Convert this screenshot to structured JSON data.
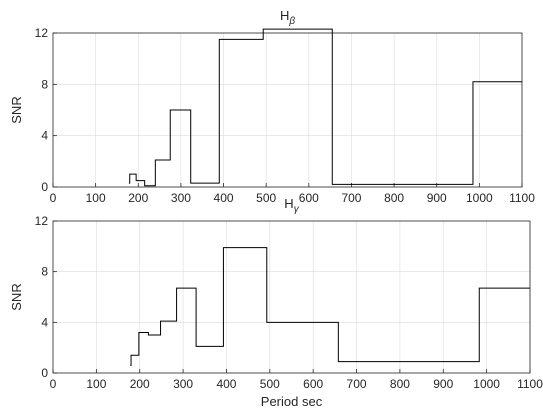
{
  "chart_data": [
    {
      "type": "line",
      "title_main": "H",
      "title_sub": "β",
      "xlabel": "",
      "ylabel": "SNR",
      "xlim": [
        0,
        1100
      ],
      "ylim": [
        0,
        12
      ],
      "xticks": [
        "0",
        "100",
        "200",
        "300",
        "400",
        "500",
        "600",
        "700",
        "800",
        "900",
        "1000",
        "1100"
      ],
      "yticks": [
        "0",
        "4",
        "8",
        "12"
      ],
      "grid": true,
      "color": "#000000",
      "segments": [
        {
          "x": [
            178,
            180
          ],
          "y": [
            0.3,
            0.3
          ]
        },
        {
          "x": [
            180,
            195
          ],
          "y": [
            1.0,
            1.0
          ]
        },
        {
          "x": [
            195,
            215
          ],
          "y": [
            0.5,
            0.5
          ]
        },
        {
          "x": [
            215,
            240
          ],
          "y": [
            0.1,
            0.1
          ]
        },
        {
          "x": [
            240,
            275
          ],
          "y": [
            2.1,
            2.1
          ]
        },
        {
          "x": [
            275,
            323
          ],
          "y": [
            6.0,
            6.0
          ]
        },
        {
          "x": [
            323,
            390
          ],
          "y": [
            0.3,
            0.3
          ]
        },
        {
          "x": [
            390,
            493
          ],
          "y": [
            11.5,
            11.5
          ]
        },
        {
          "x": [
            493,
            655
          ],
          "y": [
            12.3,
            12.3
          ]
        },
        {
          "x": [
            655,
            985
          ],
          "y": [
            0.2,
            0.2
          ]
        },
        {
          "x": [
            985,
            1100
          ],
          "y": [
            8.2,
            8.2
          ]
        }
      ]
    },
    {
      "type": "line",
      "title_main": "H",
      "title_sub": "γ",
      "xlabel": "Period sec",
      "ylabel": "SNR",
      "xlim": [
        0,
        1100
      ],
      "ylim": [
        0,
        12
      ],
      "xticks": [
        "0",
        "100",
        "200",
        "300",
        "400",
        "500",
        "600",
        "700",
        "800",
        "900",
        "1000",
        "1100"
      ],
      "yticks": [
        "0",
        "4",
        "8",
        "12"
      ],
      "grid": true,
      "color": "#000000",
      "segments": [
        {
          "x": [
            178,
            180
          ],
          "y": [
            0.6,
            0.6
          ]
        },
        {
          "x": [
            180,
            198
          ],
          "y": [
            1.4,
            1.4
          ]
        },
        {
          "x": [
            198,
            220
          ],
          "y": [
            3.2,
            3.2
          ]
        },
        {
          "x": [
            220,
            248
          ],
          "y": [
            3.0,
            3.0
          ]
        },
        {
          "x": [
            248,
            285
          ],
          "y": [
            4.1,
            4.1
          ]
        },
        {
          "x": [
            285,
            330
          ],
          "y": [
            6.7,
            6.7
          ]
        },
        {
          "x": [
            330,
            393
          ],
          "y": [
            2.1,
            2.1
          ]
        },
        {
          "x": [
            393,
            493
          ],
          "y": [
            9.9,
            9.9
          ]
        },
        {
          "x": [
            493,
            658
          ],
          "y": [
            4.0,
            4.0
          ]
        },
        {
          "x": [
            658,
            983
          ],
          "y": [
            0.9,
            0.9
          ]
        },
        {
          "x": [
            983,
            1100
          ],
          "y": [
            6.7,
            6.7
          ]
        }
      ]
    }
  ]
}
